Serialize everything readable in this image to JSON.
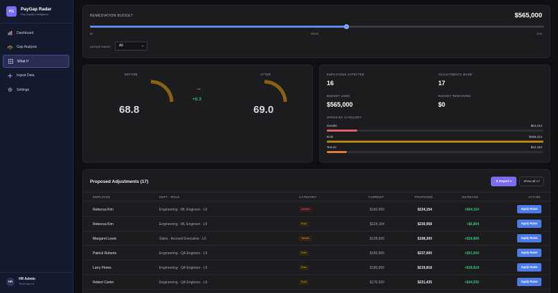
{
  "brand": {
    "logo": "PG",
    "name": "PayGap Radar",
    "subtitle": "Pay Equity Intelligence"
  },
  "nav": [
    {
      "label": "Dashboard",
      "icon": "chart-icon"
    },
    {
      "label": "Gap Analysis",
      "icon": "scale-icon"
    },
    {
      "label": "What If",
      "icon": "grid-icon",
      "active": true
    },
    {
      "label": "Ingest Data",
      "icon": "plus-icon"
    },
    {
      "label": "Settings",
      "icon": "gear-icon"
    }
  ],
  "user": {
    "initials": "HR",
    "name": "HR Admin",
    "org": "TechCorp Inc."
  },
  "budget": {
    "title": "REMEDIATION BUDGET",
    "value": "$565,000",
    "slider_fraction": 0.565,
    "ticks": {
      "min": "$0",
      "mid": "$500K",
      "max": "$1M"
    },
    "department_label": "DEPARTMENT",
    "department_value": "All"
  },
  "scores": {
    "before_label": "BEFORE",
    "before_value": "68.8",
    "after_label": "AFTER",
    "after_value": "69.0",
    "arrow": "→",
    "delta": "+0.3"
  },
  "stats": {
    "employees_label": "EMPLOYEES AFFECTED",
    "employees_value": "16",
    "adjustments_label": "ADJUSTMENTS MADE",
    "adjustments_value": "17",
    "used_label": "BUDGET USED",
    "used_value": "$565,000",
    "remaining_label": "BUDGET REMAINING",
    "remaining_value": "$0",
    "category_label": "SPEND BY CATEGORY",
    "categories": [
      {
        "name": "Gender",
        "amount": "$64,154",
        "fraction": 0.14,
        "color": "#e5606a"
      },
      {
        "name": "Role",
        "amount": "$458,414",
        "fraction": 1.0,
        "color": "#b8860b"
      },
      {
        "name": "Tenure",
        "amount": "$42,432",
        "fraction": 0.093,
        "color": "#e07b39"
      }
    ]
  },
  "table": {
    "title": "Proposed Adjustments (17)",
    "export_label": "⬇ Export ▾",
    "show_all_label": "Show all 17",
    "columns": [
      "EMPLOYEE",
      "DEPT - ROLE",
      "CATEGORY",
      "CURRENT",
      "PROPOSED",
      "INCREASE",
      "ACTION"
    ],
    "rows": [
      {
        "employee": "Rebecca Kim",
        "dept": "Engineering · ML Engineer · L6",
        "category": "Gender",
        "current": "$160,000",
        "proposed": "$224,154",
        "increase": "+$64,154",
        "action": "Apply Raise"
      },
      {
        "employee": "Rebecca Kim",
        "dept": "Engineering · ML Engineer · L6",
        "category": "Role",
        "current": "$224,154",
        "proposed": "$230,958",
        "increase": "+$6,804",
        "action": "Apply Raise"
      },
      {
        "employee": "Margaret Lewis",
        "dept": "Sales · Account Executive · L5",
        "category": "Tenure",
        "current": "$138,500",
        "proposed": "$168,300",
        "increase": "+$29,800",
        "action": "Apply Raise"
      },
      {
        "employee": "Patrick Roberts",
        "dept": "Engineering · QA Engineer · L6",
        "category": "Role",
        "current": "$185,500",
        "proposed": "$237,000",
        "increase": "+$51,500",
        "action": "Apply Raise"
      },
      {
        "employee": "Larry Flores",
        "dept": "Engineering · QA Engineer · L6",
        "category": "Role",
        "current": "$180,000",
        "proposed": "$219,818",
        "increase": "+$39,818",
        "action": "Apply Raise"
      },
      {
        "employee": "Robert Carter",
        "dept": "Engineering · QA Engineer · L6",
        "category": "Role",
        "current": "$176,500",
        "proposed": "$221,435",
        "increase": "+$44,935",
        "action": "Apply Raise"
      }
    ]
  },
  "colors": {
    "accent": "#7b6cf0",
    "slider": "#5b8def",
    "gauge": "#b8860b",
    "positive": "#35c07c",
    "apply": "#4d7ae6"
  }
}
